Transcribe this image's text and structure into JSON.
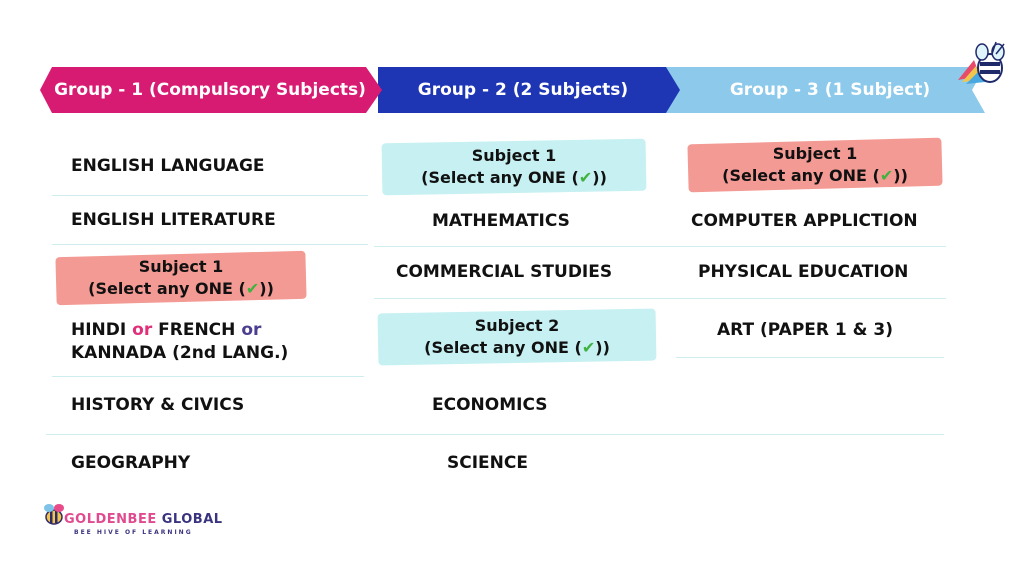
{
  "colors": {
    "group1": "#d81b72",
    "group2": "#1f36b4",
    "group3": "#8cc9ea",
    "pill_blue": "#c6f0f2",
    "pill_pink": "#f49a94",
    "divider": "#cfecef",
    "check": "#3fb23f"
  },
  "headers": {
    "group1": "Group - 1 (Compulsory Subjects)",
    "group2": "Group - 2 (2 Subjects)",
    "group3": "Group - 3 (1 Subject)"
  },
  "group1": {
    "english_language": "ENGLISH LANGUAGE",
    "english_literature": "ENGLISH LITERATURE",
    "select_title": "Subject 1",
    "select_text": "(Select any ONE (",
    "select_close": "))",
    "check_icon": "✔",
    "hindi": "HINDI",
    "or": "or",
    "french": "FRENCH",
    "kannada": "KANNADA (2nd LANG.)",
    "history": "HISTORY & CIVICS",
    "geography": "GEOGRAPHY"
  },
  "group2": {
    "select1_title": "Subject 1",
    "select1_text": "(Select any ONE (",
    "select1_close": "))",
    "mathematics": "MATHEMATICS",
    "commercial": "COMMERCIAL STUDIES",
    "select2_title": "Subject 2",
    "select2_text": "(Select any ONE (",
    "select2_close": "))",
    "economics": "ECONOMICS",
    "science": "SCIENCE"
  },
  "group3": {
    "select_title": "Subject 1",
    "select_text": "(Select any ONE (",
    "select_close": "))",
    "computer": "COMPUTER APPLICTION",
    "physical": "PHYSICAL EDUCATION",
    "art": "ART (PAPER 1 & 3)"
  },
  "logo": {
    "name_part1": "GOLDENBEE",
    "name_part2": "GLOBAL",
    "tagline": "BEE HIVE OF LEARNING"
  },
  "icons": [
    "bee-mascot-icon",
    "bee-logo-icon",
    "check-icon"
  ]
}
